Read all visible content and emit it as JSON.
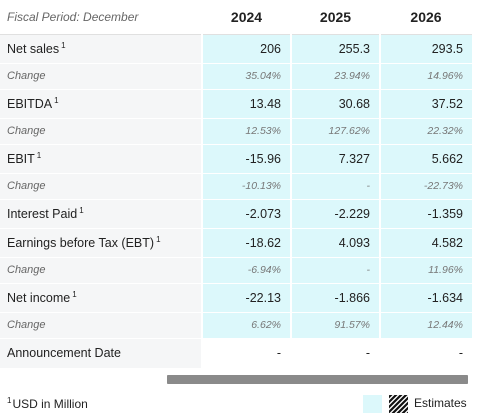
{
  "header": {
    "period_label": "Fiscal Period: December",
    "years": [
      "2024",
      "2025",
      "2026"
    ]
  },
  "rows": [
    {
      "label": "Net sales",
      "sup": "1",
      "values": [
        "206",
        "255.3",
        "293.5"
      ]
    },
    {
      "label": "Change",
      "values": [
        "35.04%",
        "23.94%",
        "14.96%"
      ]
    },
    {
      "label": "EBITDA",
      "sup": "1",
      "values": [
        "13.48",
        "30.68",
        "37.52"
      ]
    },
    {
      "label": "Change",
      "values": [
        "12.53%",
        "127.62%",
        "22.32%"
      ]
    },
    {
      "label": "EBIT",
      "sup": "1",
      "values": [
        "-15.96",
        "7.327",
        "5.662"
      ]
    },
    {
      "label": "Change",
      "values": [
        "-10.13%",
        "-",
        "-22.73%"
      ]
    },
    {
      "label": "Interest Paid",
      "sup": "1",
      "values": [
        "-2.073",
        "-2.229",
        "-1.359"
      ]
    },
    {
      "label": "Earnings before Tax (EBT)",
      "sup": "1",
      "values": [
        "-18.62",
        "4.093",
        "4.582"
      ]
    },
    {
      "label": "Change",
      "values": [
        "-6.94%",
        "-",
        "11.96%"
      ]
    },
    {
      "label": "Net income",
      "sup": "1",
      "values": [
        "-22.13",
        "-1.866",
        "-1.634"
      ]
    },
    {
      "label": "Change",
      "values": [
        "6.62%",
        "91.57%",
        "12.44%"
      ]
    },
    {
      "label": "Announcement Date",
      "values": [
        "-",
        "-",
        "-"
      ]
    }
  ],
  "footnote": {
    "sup": "1",
    "text": "USD in Million"
  },
  "legend": {
    "estimates_label": "Estimates",
    "estimate_color": "#dcf8fb"
  }
}
